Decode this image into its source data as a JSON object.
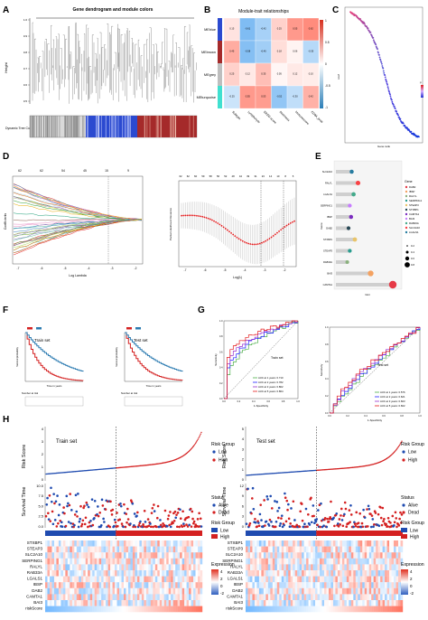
{
  "panels": {
    "A": {
      "letter": "A",
      "title": "Gene dendrogram and module colors",
      "ylabel": "Height",
      "bar_label": "Dynamic Tree Cut",
      "yticks": [
        "1.0",
        "0.9",
        "0.8",
        "0.7",
        "0.6",
        "0.5"
      ]
    },
    "B": {
      "letter": "B",
      "title": "Module-trait relationships",
      "rows": [
        "MEblue",
        "MEbrown",
        "MEgrey",
        "MEturquoise"
      ],
      "cols": [
        "Subtype",
        "Lymphocyte",
        "EREG-score",
        "Stemness",
        "Immunescore",
        "CD8A_prob"
      ],
      "scale": [
        "1",
        "0.5",
        "0",
        "-0.5",
        "-1"
      ],
      "matrix": [
        [
          0.15,
          -0.61,
          -0.42,
          0.25,
          0.55,
          0.62
        ],
        [
          0.45,
          -0.58,
          -0.45,
          0.18,
          0.06,
          -0.35
        ],
        [
          0.25,
          0.12,
          0.35,
          0.05,
          0.12,
          0.1
        ],
        [
          -0.25,
          0.55,
          0.53,
          -0.52,
          -0.3,
          0.42
        ]
      ]
    },
    "C": {
      "letter": "C",
      "xlabel": "Gene rank",
      "ylabel": "coef",
      "legend_title": "p"
    },
    "D": {
      "letter": "D",
      "left_ylabel": "Coefficients",
      "left_xlabel": "Log Lambda",
      "left_top": [
        "62",
        "62",
        "54",
        "45",
        "15",
        "9"
      ],
      "left_xticks": [
        "-7",
        "-6",
        "-5",
        "-4",
        "-3",
        "-2"
      ],
      "right_ylabel": "Partial Likelihood Deviance",
      "right_xlabel": "Log(λ)",
      "right_top": [
        "62",
        "62",
        "60",
        "59",
        "58",
        "56",
        "52",
        "48",
        "44",
        "39",
        "31",
        "23",
        "14",
        "10",
        "8",
        "5"
      ],
      "right_xticks": [
        "-7",
        "-6",
        "-5",
        "-4",
        "-3",
        "-2"
      ]
    },
    "E": {
      "letter": "E",
      "xlabel": "Gini",
      "ylabel": "Gene",
      "legend_title": "Gene",
      "genes": [
        "CAMTA1",
        "BAI3",
        "RAB33A",
        "STEAP3",
        "STXBP1",
        "DAB2",
        "IBSP",
        "SERPING1",
        "LGALS1",
        "RALYL",
        "SLC2A10"
      ],
      "legend": [
        "DAB2",
        "IBSP",
        "RALYL",
        "SERPING1",
        "STEAP3",
        "STXBP1",
        "CAMTA1",
        "BAI3",
        "RAB33A",
        "SLC2A10",
        "LGALS1"
      ],
      "size_legend": [
        "0.2",
        "0.4",
        "0.6",
        "0.8"
      ]
    },
    "F": {
      "letter": "F",
      "left_label": "Train set",
      "right_label": "Test set",
      "ylabel": "Survival probability",
      "xlabel": "Time in years",
      "risk_table": "Number at risk"
    },
    "G": {
      "letter": "G",
      "left_label": "Train set",
      "right_label": "Test set",
      "ylabel": "Sensitivity",
      "xlabel": "1-Specificity",
      "train_auc": [
        "AUC at 1 years: 0.710",
        "AUC at 2 years: 0.782",
        "AUC at 3 years: 0.802",
        "AUC at 5 years: 0.864"
      ],
      "test_auc": [
        "AUC at 1 years: 0.576",
        "AUC at 2 years: 0.621",
        "AUC at 3 years: 0.603",
        "AUC at 5 years: 0.602"
      ],
      "ticks": [
        "0.0",
        "0.2",
        "0.4",
        "0.6",
        "0.8",
        "1.0"
      ]
    },
    "H": {
      "letter": "H",
      "train": {
        "set": "Train set",
        "yticks_risk": [
          "4",
          "3",
          "2",
          "1",
          "0"
        ],
        "yticks_surv": [
          "10.0",
          "7.5",
          "5.0",
          "2.5",
          "0.0"
        ]
      },
      "test": {
        "set": "Test set",
        "yticks_risk": [
          "5",
          "4",
          "3",
          "2",
          "1",
          "0"
        ],
        "yticks_surv": [
          "12",
          "9",
          "6",
          "3",
          "0"
        ]
      },
      "risk_score": "Risk Score",
      "survival_time": "Survival Time",
      "risk_group": "Risk Group",
      "status": "Status",
      "alive": "Alive",
      "dead": "Dead",
      "low": "Low",
      "high": "High",
      "expression": "Expression",
      "expr_ticks": [
        "4",
        "2",
        "0",
        "-2"
      ],
      "genes": [
        "STXBP1",
        "STEAP3",
        "SLC2A10",
        "SERPING1",
        "RALYL",
        "RAB33A",
        "LGALS1",
        "IBSP",
        "DAB2",
        "CAMTA1",
        "BAI3",
        "riskScore"
      ]
    }
  },
  "colors": {
    "blue": "#2b4ad0",
    "brown": "#a52a2a",
    "turquoise": "#40e0d0",
    "grey": "#bebebe",
    "low": "#1f4bb0",
    "high": "#d42020"
  }
}
